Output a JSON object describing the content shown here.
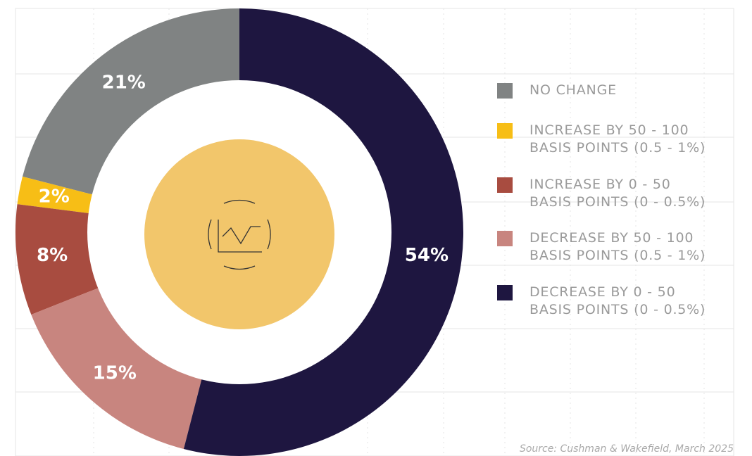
{
  "chart_data": {
    "type": "donut",
    "categories": [
      "NO CHANGE",
      "INCREASE BY 50 - 100\nBASIS POINTS (0.5 - 1%)",
      "INCREASE BY 0 - 50\nBASIS POINTS (0 - 0.5%)",
      "DECREASE BY 50 - 100\nBASIS POINTS (0.5 - 1%)",
      "DECREASE BY 0 - 50\nBASIS POINTS (0 - 0.5%)"
    ],
    "values": [
      21,
      2,
      8,
      15,
      54
    ],
    "value_labels": [
      "21%",
      "2%",
      "8%",
      "15%",
      "54%"
    ],
    "colors": [
      "#808383",
      "#f7be16",
      "#a84c40",
      "#c8857f",
      "#1e1640"
    ],
    "legend": "right",
    "source": "Source: Cushman & Wakefield, March 2025"
  }
}
